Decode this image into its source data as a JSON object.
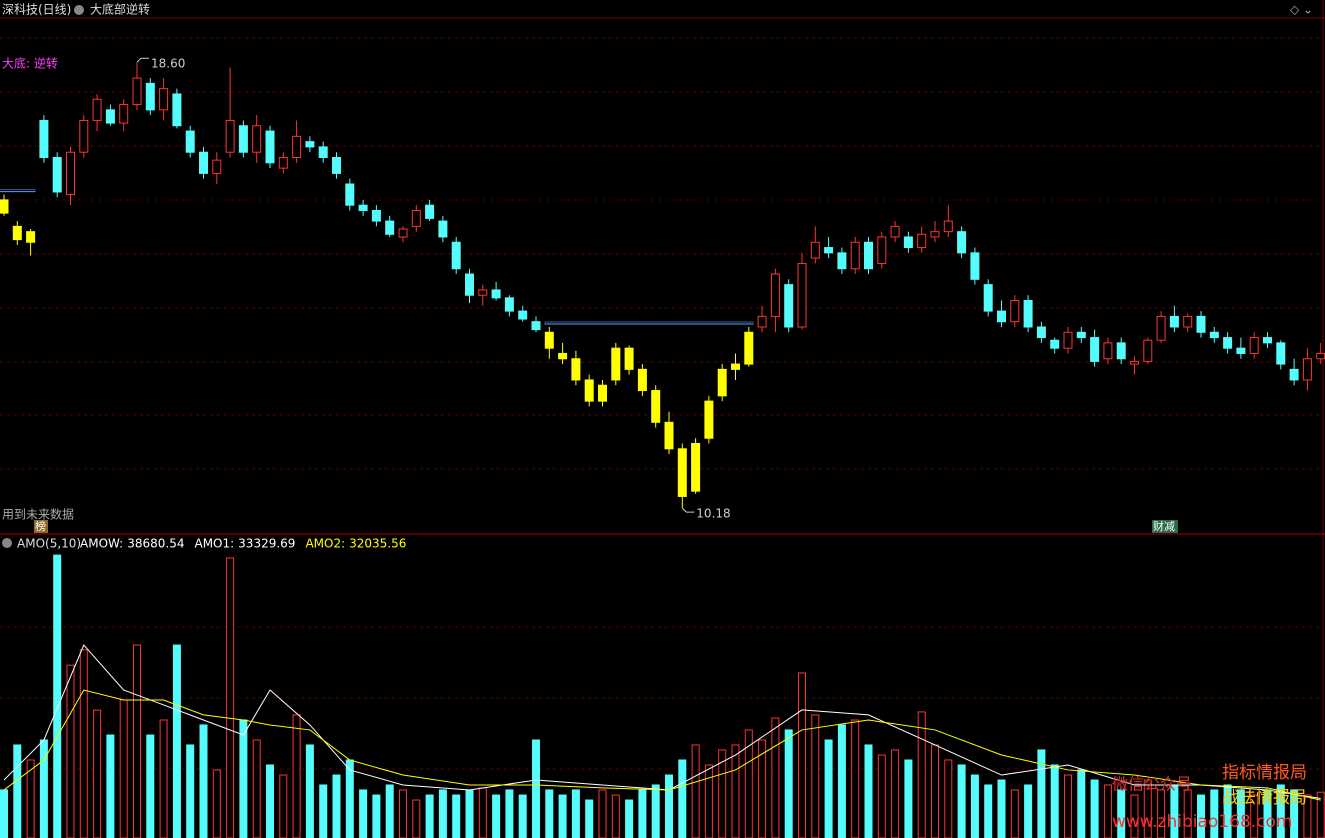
{
  "header": {
    "stock": "深科技(日线)",
    "indicator": "大底部逆转",
    "signal": "大底: 逆转",
    "note": "用到未来数据",
    "badge_left": "榜",
    "badge_right": "财减"
  },
  "watermark": {
    "wechat": "微信公众号",
    "brand1": "指标情报局",
    "brand2": "战法情报局",
    "url": "www.zhibiao168.com"
  },
  "chart_data": [
    {
      "type": "candlestick",
      "up_color": "#ff3232",
      "down_color": "#54fcfc",
      "highlight_color": "#ffff00",
      "level_color": "#5aa0ff",
      "highlight_ranges": [
        [
          0,
          2
        ],
        [
          41,
          56
        ]
      ],
      "ylim": [
        9.71,
        19.51
      ],
      "high_label": {
        "value": 18.6,
        "label": "18.60"
      },
      "low_label": 10.18,
      "ohlc": [
        [
          16.0,
          16.1,
          15.7,
          15.75
        ],
        [
          15.5,
          15.6,
          15.15,
          15.25
        ],
        [
          15.2,
          15.45,
          14.95,
          15.4
        ],
        [
          17.5,
          17.6,
          16.7,
          16.8
        ],
        [
          16.8,
          16.9,
          16.05,
          16.15
        ],
        [
          16.1,
          17.0,
          15.9,
          16.9
        ],
        [
          16.9,
          17.6,
          16.8,
          17.5
        ],
        [
          17.5,
          18.0,
          17.3,
          17.9
        ],
        [
          17.7,
          17.8,
          17.4,
          17.45
        ],
        [
          17.45,
          17.9,
          17.3,
          17.8
        ],
        [
          17.8,
          18.6,
          17.7,
          18.3
        ],
        [
          18.2,
          18.3,
          17.6,
          17.7
        ],
        [
          17.7,
          18.3,
          17.5,
          18.1
        ],
        [
          18.0,
          18.1,
          17.35,
          17.4
        ],
        [
          17.3,
          17.4,
          16.8,
          16.9
        ],
        [
          16.9,
          17.0,
          16.4,
          16.5
        ],
        [
          16.5,
          16.9,
          16.3,
          16.75
        ],
        [
          16.9,
          18.5,
          16.8,
          17.5
        ],
        [
          17.4,
          17.5,
          16.8,
          16.9
        ],
        [
          16.9,
          17.6,
          16.7,
          17.4
        ],
        [
          17.3,
          17.4,
          16.6,
          16.7
        ],
        [
          16.6,
          16.9,
          16.5,
          16.8
        ],
        [
          16.8,
          17.5,
          16.7,
          17.2
        ],
        [
          17.1,
          17.2,
          16.9,
          17.0
        ],
        [
          17.0,
          17.1,
          16.7,
          16.8
        ],
        [
          16.8,
          16.9,
          16.4,
          16.5
        ],
        [
          16.3,
          16.4,
          15.8,
          15.9
        ],
        [
          15.9,
          16.0,
          15.7,
          15.8
        ],
        [
          15.8,
          15.9,
          15.5,
          15.6
        ],
        [
          15.6,
          15.7,
          15.3,
          15.35
        ],
        [
          15.3,
          15.5,
          15.2,
          15.45
        ],
        [
          15.5,
          15.9,
          15.4,
          15.8
        ],
        [
          15.9,
          16.0,
          15.6,
          15.65
        ],
        [
          15.6,
          15.7,
          15.2,
          15.3
        ],
        [
          15.2,
          15.3,
          14.6,
          14.7
        ],
        [
          14.6,
          14.7,
          14.05,
          14.2
        ],
        [
          14.2,
          14.4,
          14.0,
          14.3
        ],
        [
          14.3,
          14.45,
          14.1,
          14.15
        ],
        [
          14.15,
          14.2,
          13.8,
          13.9
        ],
        [
          13.9,
          14.0,
          13.7,
          13.75
        ],
        [
          13.7,
          13.8,
          13.5,
          13.55
        ],
        [
          13.5,
          13.6,
          13.0,
          13.2
        ],
        [
          13.1,
          13.3,
          12.9,
          13.0
        ],
        [
          13.0,
          13.15,
          12.5,
          12.6
        ],
        [
          12.6,
          12.7,
          12.1,
          12.2
        ],
        [
          12.2,
          12.6,
          12.1,
          12.5
        ],
        [
          12.6,
          13.3,
          12.5,
          13.2
        ],
        [
          13.2,
          13.25,
          12.7,
          12.8
        ],
        [
          12.8,
          12.9,
          12.3,
          12.4
        ],
        [
          12.4,
          12.5,
          11.7,
          11.8
        ],
        [
          11.8,
          12.0,
          11.2,
          11.3
        ],
        [
          11.3,
          11.4,
          10.18,
          10.4
        ],
        [
          10.5,
          11.5,
          10.45,
          11.4
        ],
        [
          11.5,
          12.3,
          11.4,
          12.2
        ],
        [
          12.3,
          12.9,
          12.2,
          12.8
        ],
        [
          12.8,
          13.1,
          12.6,
          12.9
        ],
        [
          12.9,
          13.6,
          12.85,
          13.5
        ],
        [
          13.6,
          14.0,
          13.5,
          13.8
        ],
        [
          13.8,
          14.7,
          13.5,
          14.6
        ],
        [
          14.4,
          14.5,
          13.5,
          13.6
        ],
        [
          13.6,
          15.0,
          13.55,
          14.8
        ],
        [
          14.9,
          15.5,
          14.8,
          15.2
        ],
        [
          15.1,
          15.3,
          14.9,
          15.0
        ],
        [
          15.0,
          15.1,
          14.6,
          14.7
        ],
        [
          14.7,
          15.3,
          14.6,
          15.2
        ],
        [
          15.2,
          15.3,
          14.6,
          14.7
        ],
        [
          14.8,
          15.4,
          14.7,
          15.3
        ],
        [
          15.3,
          15.6,
          15.2,
          15.5
        ],
        [
          15.3,
          15.4,
          15.0,
          15.1
        ],
        [
          15.1,
          15.5,
          15.0,
          15.35
        ],
        [
          15.3,
          15.6,
          15.2,
          15.4
        ],
        [
          15.4,
          15.9,
          15.3,
          15.6
        ],
        [
          15.4,
          15.5,
          14.9,
          15.0
        ],
        [
          15.0,
          15.1,
          14.4,
          14.5
        ],
        [
          14.4,
          14.5,
          13.8,
          13.9
        ],
        [
          13.9,
          14.1,
          13.6,
          13.7
        ],
        [
          13.7,
          14.2,
          13.6,
          14.1
        ],
        [
          14.1,
          14.2,
          13.5,
          13.6
        ],
        [
          13.6,
          13.7,
          13.3,
          13.4
        ],
        [
          13.35,
          13.4,
          13.1,
          13.2
        ],
        [
          13.2,
          13.6,
          13.1,
          13.5
        ],
        [
          13.5,
          13.6,
          13.3,
          13.4
        ],
        [
          13.4,
          13.55,
          12.85,
          12.95
        ],
        [
          13.0,
          13.4,
          12.9,
          13.3
        ],
        [
          13.3,
          13.4,
          12.9,
          13.0
        ],
        [
          12.9,
          13.05,
          12.7,
          12.95
        ],
        [
          12.95,
          13.4,
          12.9,
          13.35
        ],
        [
          13.35,
          13.9,
          13.3,
          13.8
        ],
        [
          13.8,
          14.0,
          13.5,
          13.6
        ],
        [
          13.6,
          13.85,
          13.5,
          13.8
        ],
        [
          13.8,
          13.9,
          13.4,
          13.5
        ],
        [
          13.5,
          13.6,
          13.3,
          13.4
        ],
        [
          13.4,
          13.5,
          13.1,
          13.2
        ],
        [
          13.2,
          13.4,
          13.0,
          13.1
        ],
        [
          13.1,
          13.5,
          13.0,
          13.4
        ],
        [
          13.4,
          13.5,
          13.2,
          13.3
        ],
        [
          13.3,
          13.35,
          12.8,
          12.9
        ],
        [
          12.8,
          13.0,
          12.5,
          12.6
        ],
        [
          12.6,
          13.2,
          12.4,
          13.0
        ],
        [
          13.0,
          13.3,
          12.9,
          13.1
        ]
      ]
    },
    {
      "type": "bar",
      "title": "AMO(5,10)",
      "ylim": [
        0,
        245000
      ],
      "values": [
        40600,
        78600,
        65900,
        82800,
        239000,
        146000,
        159000,
        108000,
        87000,
        116600,
        163000,
        87000,
        99700,
        163000,
        78600,
        95500,
        57500,
        236600,
        99700,
        82800,
        61700,
        53200,
        104000,
        78600,
        44800,
        53200,
        65900,
        40600,
        36300,
        44800,
        40600,
        32100,
        36300,
        40600,
        36300,
        40600,
        42300,
        36300,
        40600,
        36300,
        82800,
        40600,
        36300,
        40600,
        32100,
        40600,
        36300,
        32100,
        40600,
        44800,
        53200,
        65900,
        78600,
        61700,
        74400,
        78600,
        91300,
        82800,
        101400,
        91300,
        139400,
        104000,
        82800,
        95500,
        99700,
        78600,
        70100,
        74400,
        65900,
        106500,
        78600,
        65900,
        61700,
        53200,
        44800,
        49000,
        40600,
        44800,
        74400,
        61700,
        53200,
        57500,
        49000,
        44800,
        40600,
        36300,
        49000,
        40600,
        44800,
        40600,
        36300,
        40600,
        44800,
        40600,
        36300,
        40600,
        44800,
        40600,
        36300,
        38680.54
      ],
      "series": [
        {
          "name": "AMOW:",
          "color": "#ffffff",
          "last": 38680.54
        },
        {
          "name": "AMO1:",
          "color": "#ffffff",
          "last": 33329.69,
          "x": [
            0,
            3,
            6,
            9,
            12,
            15,
            18,
            20,
            23,
            26,
            30,
            35,
            40,
            45,
            50,
            55,
            60,
            65,
            70,
            75,
            80,
            85,
            90,
            95,
            99
          ],
          "values": [
            49000,
            82800,
            163000,
            125000,
            112400,
            99700,
            87000,
            125000,
            95500,
            57500,
            44800,
            40600,
            49000,
            44800,
            40600,
            70100,
            108200,
            104000,
            78600,
            53200,
            61700,
            44800,
            44800,
            40600,
            33329.69
          ]
        },
        {
          "name": "AMO2:",
          "color": "#ffff00",
          "last": 32035.56,
          "x": [
            0,
            3,
            6,
            9,
            12,
            15,
            18,
            20,
            23,
            26,
            30,
            35,
            40,
            45,
            50,
            55,
            60,
            65,
            70,
            75,
            80,
            85,
            90,
            95,
            99
          ],
          "values": [
            40600,
            65900,
            125000,
            116600,
            116600,
            104000,
            99700,
            95500,
            91300,
            65900,
            53200,
            44800,
            44800,
            42300,
            40600,
            57500,
            91300,
            99700,
            91300,
            70100,
            57500,
            53200,
            44800,
            42300,
            32035.56
          ]
        }
      ]
    }
  ]
}
